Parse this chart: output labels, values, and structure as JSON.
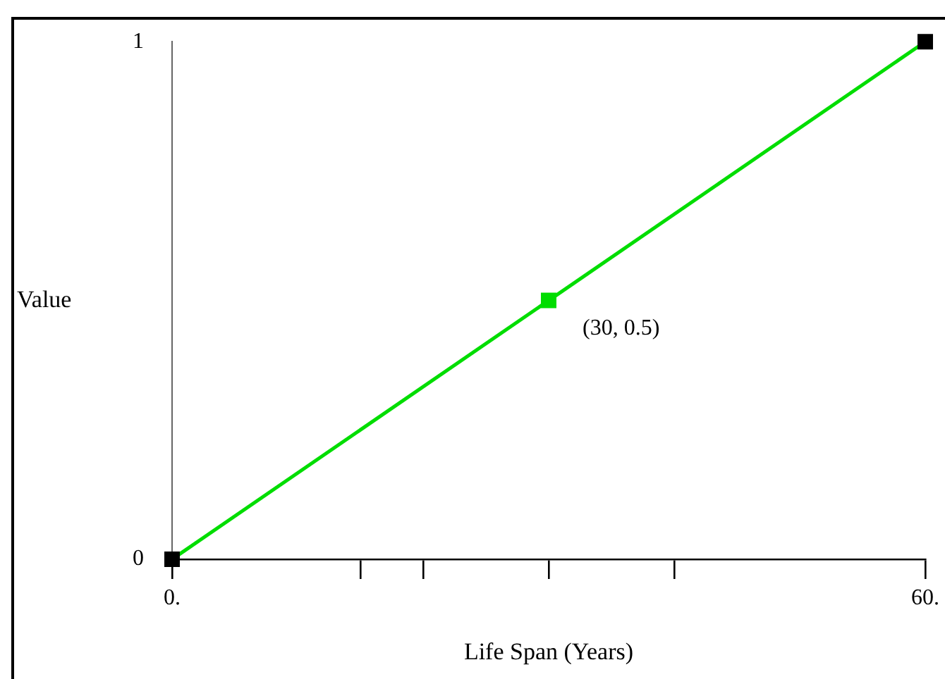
{
  "chart_data": {
    "type": "line",
    "xlabel": "Life Span (Years)",
    "ylabel": "Value",
    "x": [
      0,
      30,
      60
    ],
    "series": [
      {
        "color": "#00dd00",
        "colors": [
          "#000000",
          "#00dd00",
          "#000000"
        ],
        "values": [
          0,
          0.5,
          1
        ]
      }
    ],
    "xlim": [
      0,
      60
    ],
    "ylim": [
      0,
      1
    ],
    "xticks": [
      {
        "value": 0,
        "label": "0."
      },
      {
        "value": 15,
        "label": null
      },
      {
        "value": 20,
        "label": null
      },
      {
        "value": 30,
        "label": null
      },
      {
        "value": 40,
        "label": null
      },
      {
        "value": 60,
        "label": "60."
      }
    ],
    "yticks": [
      0,
      1
    ],
    "marker": "square",
    "line_style": "solid",
    "grid": false,
    "legend": false,
    "annotations": [
      {
        "text": "(30, 0.5)",
        "x": 30,
        "y": 0.5
      }
    ]
  }
}
